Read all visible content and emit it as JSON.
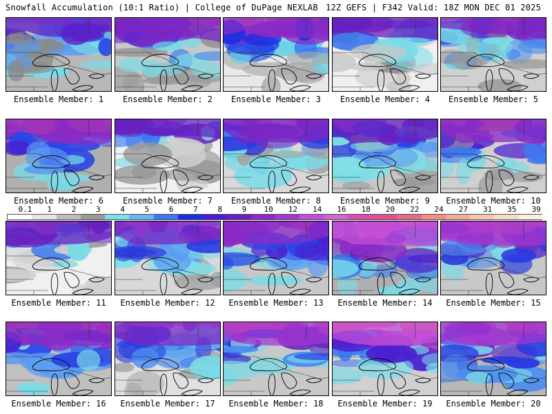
{
  "header": {
    "left_title": "Snowfall Accumulation (10:1 Ratio) | College of DuPage NEXLAB",
    "right_title": "12Z GEFS | F342 Valid: 18Z MON DEC 01 2025"
  },
  "legend": {
    "labels": [
      "0.1",
      "1",
      "2",
      "3",
      "4",
      "5",
      "6",
      "7",
      "8",
      "9",
      "10",
      "12",
      "14",
      "16",
      "18",
      "20",
      "22",
      "24",
      "27",
      "31",
      "35",
      "39"
    ],
    "colors": [
      "#ffffff",
      "#e6e6e6",
      "#bdbdbd",
      "#9a9a9a",
      "#7ee0e8",
      "#6bb6f2",
      "#3b78f0",
      "#1c2fe0",
      "#4a1fd0",
      "#6622c0",
      "#8a2bc6",
      "#a33ad0",
      "#c14fd6",
      "#d165cf",
      "#d84fa8",
      "#e0508f",
      "#e56a86",
      "#ee8f86",
      "#f2ad96",
      "#f5c6b0",
      "#f8dcc8",
      "#fcefe2"
    ]
  },
  "members": [
    {
      "label": "Ensemble Member: 1",
      "palette": [
        "#b8b8b8",
        "#8a8a8a",
        "#79dbe6",
        "#5a9bf2",
        "#2a45e6",
        "#5a22c8",
        "#c24fd6"
      ]
    },
    {
      "label": "Ensemble Member: 2",
      "palette": [
        "#c8c8c8",
        "#9a9a9a",
        "#79dbe6",
        "#4a8cf0",
        "#3a2ad8",
        "#7a27c4",
        "#d84fa8"
      ]
    },
    {
      "label": "Ensemble Member: 3",
      "palette": [
        "#e8e8e8",
        "#a8a8a8",
        "#6bd2e6",
        "#3b78f0",
        "#1c2fe0",
        "#8a2bc6",
        "#e0508f"
      ]
    },
    {
      "label": "Ensemble Member: 4",
      "palette": [
        "#f0f0f0",
        "#c8c8c8",
        "#8a8a8a",
        "#79dbe6",
        "#3b78f0",
        "#6622c0",
        "#c14fd6"
      ]
    },
    {
      "label": "Ensemble Member: 5",
      "palette": [
        "#d0d0d0",
        "#9a9a9a",
        "#79dbe6",
        "#4a8cf0",
        "#2a38e0",
        "#7a27c4",
        "#d84fa8"
      ]
    },
    {
      "label": "Ensemble Member: 6",
      "palette": [
        "#b0b0b0",
        "#79dbe6",
        "#5a9bf2",
        "#2a45e6",
        "#4a1fd0",
        "#8a2bc6",
        "#e0508f"
      ]
    },
    {
      "label": "Ensemble Member: 7",
      "palette": [
        "#f0f0f0",
        "#cfcfcf",
        "#9a9a9a",
        "#79dbe6",
        "#3b78f0",
        "#6622c0",
        "#c14fd6"
      ]
    },
    {
      "label": "Ensemble Member: 8",
      "palette": [
        "#d8d8d8",
        "#a0a0a0",
        "#79dbe6",
        "#4a8cf0",
        "#2a38e0",
        "#7a27c4",
        "#d165cf"
      ]
    },
    {
      "label": "Ensemble Member: 9",
      "palette": [
        "#c8c8c8",
        "#9a9a9a",
        "#7ee0e8",
        "#5a9bf2",
        "#2a45e6",
        "#6622c0",
        "#c14fd6"
      ]
    },
    {
      "label": "Ensemble Member: 10",
      "palette": [
        "#d0d0d0",
        "#9a9a9a",
        "#79dbe6",
        "#3b78f0",
        "#4a1fd0",
        "#8a2bc6",
        "#e56a86"
      ]
    },
    {
      "label": "Ensemble Member: 11",
      "palette": [
        "#f0f0f0",
        "#d0d0d0",
        "#9a9a9a",
        "#79dbe6",
        "#3b78f0",
        "#6622c0",
        "#c14fd6"
      ]
    },
    {
      "label": "Ensemble Member: 12",
      "palette": [
        "#d8d8d8",
        "#a0a0a0",
        "#7ee0e8",
        "#5a9bf2",
        "#2a38e0",
        "#7a27c4",
        "#d165cf"
      ]
    },
    {
      "label": "Ensemble Member: 13",
      "palette": [
        "#c8c8c8",
        "#79dbe6",
        "#5a9bf2",
        "#2a45e6",
        "#4a1fd0",
        "#8a2bc6",
        "#d84fa8"
      ]
    },
    {
      "label": "Ensemble Member: 14",
      "palette": [
        "#b0b0b0",
        "#79dbe6",
        "#3b78f0",
        "#4a1fd0",
        "#8a2bc6",
        "#c14fd6",
        "#e0508f"
      ]
    },
    {
      "label": "Ensemble Member: 15",
      "palette": [
        "#c8c8c8",
        "#79dbe6",
        "#4a8cf0",
        "#2a38e0",
        "#6622c0",
        "#a33ad0",
        "#d84fa8"
      ]
    },
    {
      "label": "Ensemble Member: 16",
      "palette": [
        "#c0c0c0",
        "#79dbe6",
        "#5a9bf2",
        "#2a45e6",
        "#4a1fd0",
        "#8a2bc6",
        "#e0508f"
      ]
    },
    {
      "label": "Ensemble Member: 17",
      "palette": [
        "#e0e0e0",
        "#a8a8a8",
        "#79dbe6",
        "#4a8cf0",
        "#2a38e0",
        "#7a27c4",
        "#d165cf"
      ]
    },
    {
      "label": "Ensemble Member: 18",
      "palette": [
        "#c8c8c8",
        "#79dbe6",
        "#4a8cf0",
        "#2a38e0",
        "#6622c0",
        "#a33ad0",
        "#e0508f"
      ]
    },
    {
      "label": "Ensemble Member: 19",
      "palette": [
        "#d0d0d0",
        "#79dbe6",
        "#3b78f0",
        "#4a1fd0",
        "#8a2bc6",
        "#c14fd6",
        "#e56a86"
      ]
    },
    {
      "label": "Ensemble Member: 20",
      "palette": [
        "#b8b8b8",
        "#79dbe6",
        "#4a8cf0",
        "#2a38e0",
        "#6622c0",
        "#a33ad0",
        "#d84fa8"
      ]
    }
  ]
}
